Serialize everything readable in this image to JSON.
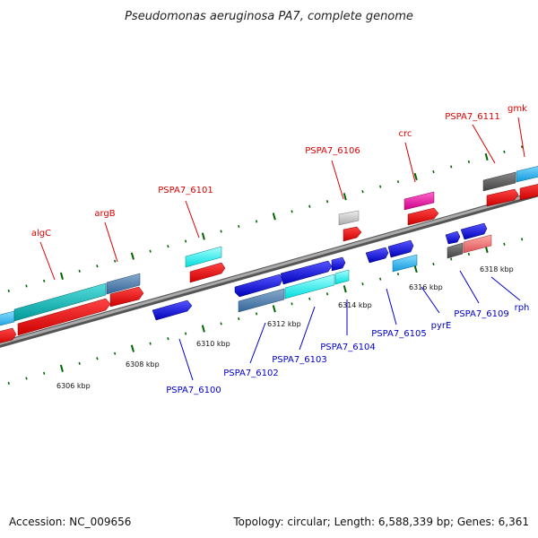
{
  "title": "Pseudomonas aeruginosa PA7, complete genome",
  "footer": {
    "accession": "Accession: NC_009656",
    "topology": "Topology: circular; Length: 6,588,339 bp; Genes: 6,361"
  },
  "colors": {
    "top_label": "#dd0000",
    "bottom_label": "#0000cc",
    "backbone": "#888888",
    "tick": "#006600"
  },
  "scale_ticks": [
    "6306 kbp",
    "6308 kbp",
    "6310 kbp",
    "6312 kbp",
    "6314 kbp",
    "6316 kbp",
    "6318 kbp"
  ],
  "top_labels": [
    "algC",
    "argB",
    "PSPA7_6101",
    "PSPA7_6106",
    "crc",
    "PSPA7_6111",
    "gmk"
  ],
  "bottom_labels": [
    "PSPA7_6100",
    "PSPA7_6102",
    "PSPA7_6103",
    "PSPA7_6104",
    "PSPA7_6105",
    "pyrE",
    "PSPA7_6109",
    "rph"
  ]
}
